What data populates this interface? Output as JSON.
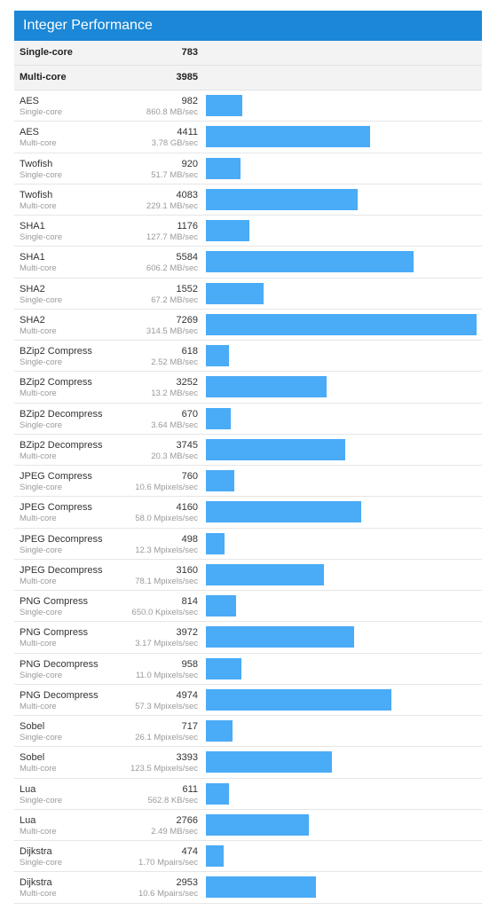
{
  "header": {
    "title": "Integer Performance"
  },
  "summary": [
    {
      "label": "Single-core",
      "value": "783"
    },
    {
      "label": "Multi-core",
      "value": "3985"
    }
  ],
  "chart_data": {
    "type": "bar",
    "orientation": "horizontal",
    "max_value": 7269,
    "bar_color": "#4aabf7",
    "rows": [
      {
        "name": "AES",
        "kind": "Single-core",
        "score": 982,
        "rate": "860.8 MB/sec"
      },
      {
        "name": "AES",
        "kind": "Multi-core",
        "score": 4411,
        "rate": "3.78 GB/sec"
      },
      {
        "name": "Twofish",
        "kind": "Single-core",
        "score": 920,
        "rate": "51.7 MB/sec"
      },
      {
        "name": "Twofish",
        "kind": "Multi-core",
        "score": 4083,
        "rate": "229.1 MB/sec"
      },
      {
        "name": "SHA1",
        "kind": "Single-core",
        "score": 1176,
        "rate": "127.7 MB/sec"
      },
      {
        "name": "SHA1",
        "kind": "Multi-core",
        "score": 5584,
        "rate": "606.2 MB/sec"
      },
      {
        "name": "SHA2",
        "kind": "Single-core",
        "score": 1552,
        "rate": "67.2 MB/sec"
      },
      {
        "name": "SHA2",
        "kind": "Multi-core",
        "score": 7269,
        "rate": "314.5 MB/sec"
      },
      {
        "name": "BZip2 Compress",
        "kind": "Single-core",
        "score": 618,
        "rate": "2.52 MB/sec"
      },
      {
        "name": "BZip2 Compress",
        "kind": "Multi-core",
        "score": 3252,
        "rate": "13.2 MB/sec"
      },
      {
        "name": "BZip2 Decompress",
        "kind": "Single-core",
        "score": 670,
        "rate": "3.64 MB/sec"
      },
      {
        "name": "BZip2 Decompress",
        "kind": "Multi-core",
        "score": 3745,
        "rate": "20.3 MB/sec"
      },
      {
        "name": "JPEG Compress",
        "kind": "Single-core",
        "score": 760,
        "rate": "10.6 Mpixels/sec"
      },
      {
        "name": "JPEG Compress",
        "kind": "Multi-core",
        "score": 4160,
        "rate": "58.0 Mpixels/sec"
      },
      {
        "name": "JPEG Decompress",
        "kind": "Single-core",
        "score": 498,
        "rate": "12.3 Mpixels/sec"
      },
      {
        "name": "JPEG Decompress",
        "kind": "Multi-core",
        "score": 3160,
        "rate": "78.1 Mpixels/sec"
      },
      {
        "name": "PNG Compress",
        "kind": "Single-core",
        "score": 814,
        "rate": "650.0 Kpixels/sec"
      },
      {
        "name": "PNG Compress",
        "kind": "Multi-core",
        "score": 3972,
        "rate": "3.17 Mpixels/sec"
      },
      {
        "name": "PNG Decompress",
        "kind": "Single-core",
        "score": 958,
        "rate": "11.0 Mpixels/sec"
      },
      {
        "name": "PNG Decompress",
        "kind": "Multi-core",
        "score": 4974,
        "rate": "57.3 Mpixels/sec"
      },
      {
        "name": "Sobel",
        "kind": "Single-core",
        "score": 717,
        "rate": "26.1 Mpixels/sec"
      },
      {
        "name": "Sobel",
        "kind": "Multi-core",
        "score": 3393,
        "rate": "123.5 Mpixels/sec"
      },
      {
        "name": "Lua",
        "kind": "Single-core",
        "score": 611,
        "rate": "562.8 KB/sec"
      },
      {
        "name": "Lua",
        "kind": "Multi-core",
        "score": 2766,
        "rate": "2.49 MB/sec"
      },
      {
        "name": "Dijkstra",
        "kind": "Single-core",
        "score": 474,
        "rate": "1.70 Mpairs/sec"
      },
      {
        "name": "Dijkstra",
        "kind": "Multi-core",
        "score": 2953,
        "rate": "10.6 Mpairs/sec"
      }
    ]
  }
}
